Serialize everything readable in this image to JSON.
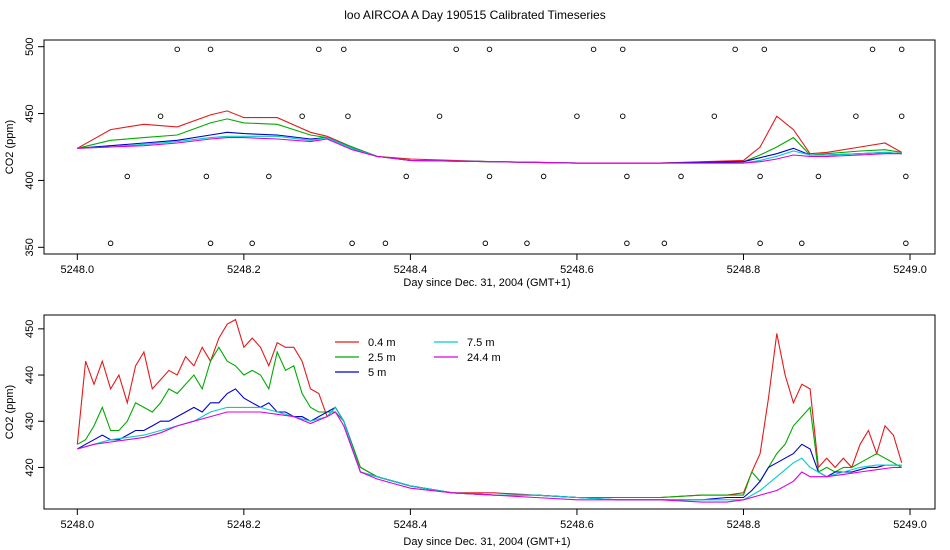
{
  "page": {
    "title": "loo AIRCOA A  Day 190515  Calibrated Timeseries"
  },
  "chart_data": [
    {
      "type": "line",
      "xlabel": "Day since Dec. 31, 2004 (GMT+1)",
      "ylabel": "CO2 (ppm)",
      "xlim": [
        5247.96,
        5249.03
      ],
      "ylim": [
        345,
        505
      ],
      "x_ticks": [
        5248.0,
        5248.2,
        5248.4,
        5248.6,
        5248.8,
        5249.0
      ],
      "x_tick_labels": [
        "5248.0",
        "5248.2",
        "5248.4",
        "5248.6",
        "5248.8",
        "5249.0"
      ],
      "y_ticks": [
        350,
        400,
        450,
        500
      ],
      "y_tick_labels": [
        "350",
        "400",
        "450",
        "500"
      ],
      "grid": false,
      "series": [
        {
          "color": "#e41a1c",
          "x": [
            5248.0,
            5248.04,
            5248.08,
            5248.12,
            5248.16,
            5248.18,
            5248.2,
            5248.24,
            5248.28,
            5248.3,
            5248.33,
            5248.36,
            5248.4,
            5248.5,
            5248.6,
            5248.7,
            5248.8,
            5248.82,
            5248.84,
            5248.86,
            5248.88,
            5248.9,
            5248.94,
            5248.97,
            5248.99
          ],
          "values": [
            424,
            438,
            442,
            440,
            449,
            452,
            447,
            447,
            436,
            433,
            425,
            418,
            416,
            414,
            413,
            413,
            415,
            425,
            448,
            438,
            420,
            421,
            425,
            428,
            421
          ]
        },
        {
          "color": "#00aa00",
          "x": [
            5248.0,
            5248.04,
            5248.08,
            5248.12,
            5248.16,
            5248.18,
            5248.2,
            5248.24,
            5248.28,
            5248.3,
            5248.33,
            5248.36,
            5248.4,
            5248.5,
            5248.6,
            5248.7,
            5248.8,
            5248.82,
            5248.84,
            5248.86,
            5248.88,
            5248.9,
            5248.94,
            5248.97,
            5248.99
          ],
          "values": [
            424,
            430,
            432,
            434,
            443,
            446,
            443,
            442,
            434,
            432,
            425,
            418,
            415,
            414,
            413,
            413,
            414,
            419,
            425,
            432,
            419,
            420,
            422,
            423,
            421
          ]
        },
        {
          "color": "#0000cc",
          "x": [
            5248.0,
            5248.04,
            5248.08,
            5248.12,
            5248.16,
            5248.18,
            5248.2,
            5248.24,
            5248.28,
            5248.3,
            5248.33,
            5248.36,
            5248.4,
            5248.5,
            5248.6,
            5248.7,
            5248.8,
            5248.82,
            5248.84,
            5248.86,
            5248.88,
            5248.9,
            5248.94,
            5248.97,
            5248.99
          ],
          "values": [
            424,
            426,
            428,
            430,
            434,
            436,
            435,
            434,
            431,
            432,
            424,
            418,
            415,
            414,
            413,
            413,
            414,
            417,
            420,
            424,
            419,
            419,
            420,
            421,
            420
          ]
        },
        {
          "color": "#00cccc",
          "x": [
            5248.0,
            5248.04,
            5248.08,
            5248.12,
            5248.16,
            5248.18,
            5248.2,
            5248.24,
            5248.28,
            5248.3,
            5248.33,
            5248.36,
            5248.4,
            5248.5,
            5248.6,
            5248.7,
            5248.8,
            5248.82,
            5248.84,
            5248.86,
            5248.88,
            5248.9,
            5248.94,
            5248.97,
            5248.99
          ],
          "values": [
            424,
            425,
            427,
            429,
            432,
            433,
            433,
            433,
            430,
            432,
            424,
            418,
            415,
            414,
            413,
            413,
            413,
            415,
            418,
            422,
            419,
            419,
            420,
            421,
            420
          ]
        },
        {
          "color": "#dd00dd",
          "x": [
            5248.0,
            5248.04,
            5248.08,
            5248.12,
            5248.16,
            5248.18,
            5248.2,
            5248.24,
            5248.28,
            5248.3,
            5248.33,
            5248.36,
            5248.4,
            5248.5,
            5248.6,
            5248.7,
            5248.8,
            5248.82,
            5248.84,
            5248.86,
            5248.88,
            5248.9,
            5248.94,
            5248.97,
            5248.99
          ],
          "values": [
            424,
            425,
            426,
            428,
            431,
            432,
            432,
            431,
            429,
            431,
            423,
            418,
            415,
            414,
            413,
            413,
            413,
            414,
            416,
            419,
            418,
            418,
            419,
            420,
            420
          ]
        }
      ],
      "scatter": {
        "color": "#000000",
        "x": [
          5248.04,
          5248.12,
          5248.16,
          5248.06,
          5248.1,
          5248.155,
          5248.16,
          5248.21,
          5248.23,
          5248.27,
          5248.29,
          5248.32,
          5248.325,
          5248.33,
          5248.37,
          5248.395,
          5248.435,
          5248.455,
          5248.49,
          5248.495,
          5248.495,
          5248.54,
          5248.56,
          5248.6,
          5248.62,
          5248.655,
          5248.655,
          5248.66,
          5248.66,
          5248.705,
          5248.725,
          5248.765,
          5248.79,
          5248.82,
          5248.82,
          5248.825,
          5248.87,
          5248.89,
          5248.935,
          5248.955,
          5248.99,
          5248.99,
          5248.995,
          5248.995
        ],
        "values": [
          353,
          498,
          353,
          403,
          448,
          403,
          498,
          353,
          403,
          448,
          498,
          498,
          448,
          353,
          353,
          403,
          448,
          498,
          353,
          498,
          403,
          353,
          403,
          448,
          498,
          498,
          448,
          403,
          353,
          353,
          403,
          448,
          498,
          353,
          403,
          498,
          353,
          403,
          448,
          498,
          498,
          448,
          403,
          353
        ]
      }
    },
    {
      "type": "line",
      "xlabel": "Day since Dec. 31, 2004 (GMT+1)",
      "ylabel": "CO2 (ppm)",
      "xlim": [
        5247.96,
        5249.03
      ],
      "ylim": [
        411,
        453
      ],
      "x_ticks": [
        5248.0,
        5248.2,
        5248.4,
        5248.6,
        5248.8,
        5249.0
      ],
      "x_tick_labels": [
        "5248.0",
        "5248.2",
        "5248.4",
        "5248.6",
        "5248.8",
        "5249.0"
      ],
      "y_ticks": [
        420,
        430,
        440,
        450
      ],
      "y_tick_labels": [
        "420",
        "430",
        "440",
        "450"
      ],
      "grid": false,
      "legend_placement": "top-left",
      "series": [
        {
          "name": "0.4 m",
          "color": "#e41a1c",
          "x": [
            5248.0,
            5248.01,
            5248.02,
            5248.03,
            5248.04,
            5248.05,
            5248.06,
            5248.07,
            5248.08,
            5248.09,
            5248.1,
            5248.11,
            5248.12,
            5248.13,
            5248.14,
            5248.15,
            5248.16,
            5248.17,
            5248.18,
            5248.19,
            5248.2,
            5248.21,
            5248.22,
            5248.23,
            5248.24,
            5248.25,
            5248.26,
            5248.27,
            5248.28,
            5248.29,
            5248.3,
            5248.31,
            5248.32,
            5248.34,
            5248.36,
            5248.38,
            5248.4,
            5248.45,
            5248.5,
            5248.55,
            5248.6,
            5248.65,
            5248.7,
            5248.75,
            5248.78,
            5248.8,
            5248.81,
            5248.82,
            5248.83,
            5248.84,
            5248.85,
            5248.86,
            5248.87,
            5248.88,
            5248.89,
            5248.9,
            5248.91,
            5248.92,
            5248.93,
            5248.94,
            5248.95,
            5248.96,
            5248.97,
            5248.98,
            5248.99
          ],
          "values": [
            425,
            443,
            438,
            443,
            437,
            440,
            434,
            442,
            445,
            437,
            439,
            441,
            440,
            444,
            442,
            446,
            443,
            448,
            451,
            452,
            446,
            448,
            446,
            442,
            447,
            446,
            446,
            443,
            437,
            436,
            431,
            433,
            430,
            420,
            418,
            417,
            416,
            414.5,
            414.5,
            414,
            413.5,
            413.5,
            413.5,
            414,
            414,
            414.5,
            419,
            423,
            435,
            449,
            440,
            434,
            438,
            437,
            420,
            422,
            420,
            422,
            420,
            425,
            428,
            423,
            429,
            427,
            421
          ]
        },
        {
          "name": "2.5 m",
          "color": "#00aa00",
          "x": [
            5248.0,
            5248.01,
            5248.02,
            5248.03,
            5248.04,
            5248.05,
            5248.06,
            5248.07,
            5248.08,
            5248.09,
            5248.1,
            5248.11,
            5248.12,
            5248.13,
            5248.14,
            5248.15,
            5248.16,
            5248.17,
            5248.18,
            5248.19,
            5248.2,
            5248.21,
            5248.22,
            5248.23,
            5248.24,
            5248.25,
            5248.26,
            5248.27,
            5248.28,
            5248.29,
            5248.3,
            5248.31,
            5248.32,
            5248.34,
            5248.36,
            5248.38,
            5248.4,
            5248.45,
            5248.5,
            5248.55,
            5248.6,
            5248.65,
            5248.7,
            5248.75,
            5248.78,
            5248.8,
            5248.81,
            5248.82,
            5248.83,
            5248.84,
            5248.85,
            5248.86,
            5248.87,
            5248.88,
            5248.89,
            5248.9,
            5248.91,
            5248.92,
            5248.93,
            5248.94,
            5248.95,
            5248.96,
            5248.97,
            5248.98,
            5248.99
          ],
          "values": [
            425,
            426,
            429,
            433,
            428,
            428,
            430,
            434,
            433,
            432,
            434,
            437,
            436,
            438,
            440,
            437,
            443,
            446,
            443,
            442,
            440,
            441,
            440,
            437,
            445,
            441,
            442,
            436,
            433,
            432,
            432,
            432,
            430,
            420,
            418,
            417,
            416,
            414.5,
            414,
            414,
            413.5,
            413.5,
            413.5,
            414,
            414,
            414,
            419,
            417,
            420,
            423,
            425,
            429,
            431,
            433,
            419,
            420,
            419,
            420,
            420,
            421,
            422,
            423,
            422,
            421,
            420
          ]
        },
        {
          "name": "5 m",
          "color": "#0000cc",
          "x": [
            5248.0,
            5248.01,
            5248.02,
            5248.03,
            5248.04,
            5248.05,
            5248.06,
            5248.07,
            5248.08,
            5248.09,
            5248.1,
            5248.11,
            5248.12,
            5248.13,
            5248.14,
            5248.15,
            5248.16,
            5248.17,
            5248.18,
            5248.19,
            5248.2,
            5248.21,
            5248.22,
            5248.23,
            5248.24,
            5248.25,
            5248.26,
            5248.27,
            5248.28,
            5248.29,
            5248.3,
            5248.31,
            5248.32,
            5248.34,
            5248.36,
            5248.38,
            5248.4,
            5248.45,
            5248.5,
            5248.55,
            5248.6,
            5248.65,
            5248.7,
            5248.75,
            5248.78,
            5248.8,
            5248.81,
            5248.82,
            5248.83,
            5248.84,
            5248.85,
            5248.86,
            5248.87,
            5248.88,
            5248.89,
            5248.9,
            5248.91,
            5248.92,
            5248.93,
            5248.94,
            5248.95,
            5248.96,
            5248.97,
            5248.98,
            5248.99
          ],
          "values": [
            424,
            425,
            426,
            427,
            426,
            426,
            427,
            428,
            428,
            429,
            430,
            430,
            431,
            432,
            433,
            432,
            434,
            434,
            436,
            437,
            435,
            434,
            433,
            434,
            432,
            432,
            431,
            431,
            430,
            431,
            432,
            433,
            430,
            419,
            418,
            417,
            416,
            414.5,
            414,
            414,
            413.5,
            413,
            413,
            413,
            413.5,
            413.5,
            415,
            417,
            420,
            421,
            422,
            423,
            425,
            424,
            419,
            418,
            419,
            419,
            419,
            419.5,
            420,
            420,
            420.5,
            420.5,
            420.5
          ]
        },
        {
          "name": "7.5 m",
          "color": "#00cccc",
          "x": [
            5248.0,
            5248.02,
            5248.04,
            5248.06,
            5248.08,
            5248.1,
            5248.12,
            5248.14,
            5248.16,
            5248.18,
            5248.2,
            5248.22,
            5248.24,
            5248.26,
            5248.28,
            5248.3,
            5248.31,
            5248.32,
            5248.34,
            5248.36,
            5248.38,
            5248.4,
            5248.45,
            5248.5,
            5248.55,
            5248.6,
            5248.65,
            5248.7,
            5248.75,
            5248.78,
            5248.8,
            5248.82,
            5248.84,
            5248.86,
            5248.87,
            5248.88,
            5248.89,
            5248.9,
            5248.92,
            5248.94,
            5248.96,
            5248.98,
            5248.99
          ],
          "values": [
            424,
            425,
            426,
            426.5,
            427,
            428,
            429,
            430,
            432,
            433,
            433,
            433,
            432,
            431,
            430,
            431,
            433,
            430,
            419,
            418,
            417,
            416,
            414.5,
            414,
            414,
            413.5,
            413,
            413,
            413,
            413,
            413,
            415,
            418,
            421,
            422,
            420,
            419,
            418,
            419,
            420,
            420.5,
            420.5,
            420.5
          ]
        },
        {
          "name": "24.4 m",
          "color": "#dd00dd",
          "x": [
            5248.0,
            5248.02,
            5248.04,
            5248.06,
            5248.08,
            5248.1,
            5248.12,
            5248.14,
            5248.16,
            5248.18,
            5248.2,
            5248.22,
            5248.24,
            5248.26,
            5248.28,
            5248.3,
            5248.31,
            5248.32,
            5248.34,
            5248.36,
            5248.38,
            5248.4,
            5248.45,
            5248.5,
            5248.55,
            5248.6,
            5248.65,
            5248.7,
            5248.75,
            5248.78,
            5248.8,
            5248.82,
            5248.84,
            5248.86,
            5248.87,
            5248.88,
            5248.89,
            5248.9,
            5248.92,
            5248.94,
            5248.96,
            5248.98,
            5248.99
          ],
          "values": [
            424,
            425,
            425.5,
            426,
            426.5,
            427.5,
            429,
            430,
            431,
            432,
            432,
            432,
            431.5,
            431,
            429.5,
            431,
            432,
            429,
            419,
            417.5,
            416.5,
            415.5,
            414.5,
            414,
            413.5,
            413,
            413,
            413,
            412.5,
            412.5,
            413,
            414,
            415,
            417,
            419,
            418,
            418,
            418,
            418.5,
            419,
            419.5,
            420,
            420
          ]
        }
      ]
    }
  ]
}
